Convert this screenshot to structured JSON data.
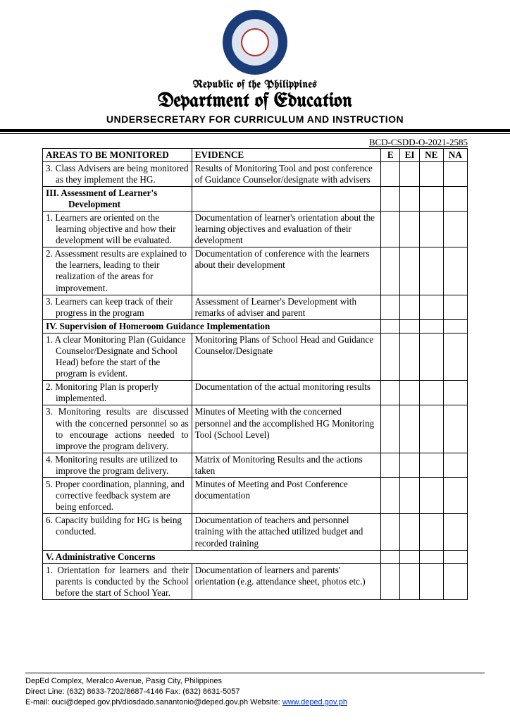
{
  "header": {
    "country_line": "Republic of the Philippines",
    "dept_line": "Department of Education",
    "undersec_line": "UNDERSECRETARY FOR CURRICULUM AND INSTRUCTION"
  },
  "doc_ref": "BCD-CSDD-O-2021-2585",
  "cols": {
    "areas": "AREAS TO BE MONITORED",
    "evidence": "EVIDENCE",
    "e": "E",
    "ei": "EI",
    "ne": "NE",
    "na": "NA"
  },
  "rows": [
    {
      "type": "item",
      "area": "3. Class Advisers are being monitored as they implement the HG.",
      "evidence": "Results of Monitoring Tool and post conference of Guidance Counselor/designate with advisers",
      "justify": true
    },
    {
      "type": "section",
      "area_main": "III. Assessment of Learner's",
      "area_sub": "Development"
    },
    {
      "type": "item",
      "area": "1. Learners are oriented on the learning objective and how their development will be evaluated.",
      "evidence": "Documentation of learner's orientation about the learning objectives and evaluation of their development"
    },
    {
      "type": "item",
      "area": "2. Assessment results are explained to the learners, leading to their realization of the areas for improvement.",
      "evidence": "Documentation of conference with the learners about their development"
    },
    {
      "type": "item",
      "area": "3. Learners can keep track of their progress in the program",
      "evidence": "Assessment of Learner's Development with remarks of adviser and parent"
    },
    {
      "type": "section-span",
      "text": "IV. Supervision of Homeroom Guidance Implementation"
    },
    {
      "type": "item",
      "area": "1. A clear Monitoring Plan (Guidance Counselor/Designate and School Head) before the start of the program is evident.",
      "evidence": "Monitoring Plans of School Head and Guidance Counselor/Designate"
    },
    {
      "type": "item",
      "area": "2. Monitoring Plan is properly implemented.",
      "evidence": "Documentation of the actual monitoring results"
    },
    {
      "type": "item",
      "area": "3. Monitoring results are discussed with the concerned personnel so as to encourage actions needed to improve the program delivery.",
      "evidence": "Minutes of Meeting with the concerned personnel and the accomplished HG Monitoring Tool (School Level)",
      "justify": true
    },
    {
      "type": "item",
      "area": "4. Monitoring results are utilized to improve the program delivery.",
      "evidence": "Matrix of Monitoring Results and the actions taken"
    },
    {
      "type": "item",
      "area": "5. Proper coordination, planning, and corrective feedback system are being enforced.",
      "evidence": "Minutes of Meeting and Post Conference documentation"
    },
    {
      "type": "item",
      "area": "6. Capacity building for HG is being conducted.",
      "evidence": "Documentation of teachers and personnel training with the attached utilized budget and recorded training"
    },
    {
      "type": "section-span",
      "text": "V. Administrative Concerns"
    },
    {
      "type": "item",
      "area": "1. Orientation for learners and their parents is conducted by the School before the start of School Year.",
      "evidence": "Documentation of learners and parents' orientation (e.g. attendance sheet, photos etc.)",
      "justify": true
    }
  ],
  "footer": {
    "line1": "DepEd Complex, Meralco Avenue, Pasig City, Philippines",
    "line2": "Direct Line: (632) 8633-7202/8687-4146 Fax: (632) 8631-5057",
    "line3_pre": "E-mail: ouci@deped.gov.ph/diosdado.sanantonio@deped.gov.ph Website: ",
    "line3_link": "www.deped.gov.ph"
  }
}
